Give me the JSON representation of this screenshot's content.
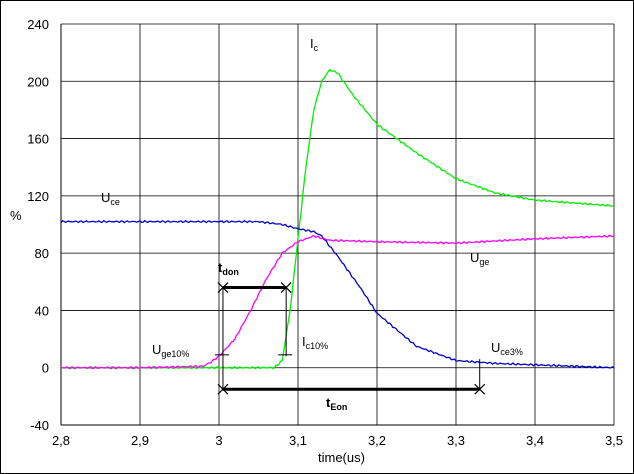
{
  "chart_data": {
    "type": "line",
    "xlabel": "time(us)",
    "ylabel": "%",
    "xlim": [
      2.8,
      3.5
    ],
    "ylim": [
      -40,
      240
    ],
    "x_ticks": [
      "2,8",
      "2,9",
      "3",
      "3,1",
      "3,2",
      "3,3",
      "3,4",
      "3,5"
    ],
    "y_ticks": [
      "-40",
      "0",
      "40",
      "80",
      "120",
      "160",
      "200",
      "240"
    ],
    "grid": true,
    "series": [
      {
        "name": "Ic",
        "color": "#00ee00",
        "x": [
          2.8,
          2.9,
          3.0,
          3.07,
          3.08,
          3.09,
          3.1,
          3.11,
          3.12,
          3.13,
          3.14,
          3.15,
          3.17,
          3.2,
          3.25,
          3.3,
          3.35,
          3.4,
          3.45,
          3.5
        ],
        "y": [
          0,
          0,
          0,
          0,
          5,
          40,
          90,
          140,
          180,
          200,
          208,
          206,
          190,
          170,
          150,
          132,
          122,
          117,
          115,
          113
        ]
      },
      {
        "name": "Uce",
        "color": "#0000cc",
        "x": [
          2.8,
          2.9,
          3.0,
          3.05,
          3.08,
          3.1,
          3.12,
          3.13,
          3.15,
          3.18,
          3.2,
          3.25,
          3.3,
          3.35,
          3.4,
          3.45,
          3.5
        ],
        "y": [
          102,
          102,
          102,
          102,
          100,
          97,
          95,
          92,
          78,
          55,
          38,
          15,
          5,
          3,
          2,
          1,
          0
        ]
      },
      {
        "name": "Uge",
        "color": "#ff00ff",
        "x": [
          2.8,
          2.9,
          2.98,
          2.99,
          3.0,
          3.02,
          3.04,
          3.06,
          3.08,
          3.1,
          3.12,
          3.14,
          3.2,
          3.3,
          3.4,
          3.5
        ],
        "y": [
          0,
          0,
          1,
          4,
          8,
          20,
          40,
          62,
          80,
          88,
          92,
          89,
          88,
          87,
          90,
          92
        ]
      }
    ],
    "annotations": [
      {
        "main": "I",
        "sub": "c"
      },
      {
        "main": "U",
        "sub": "ce"
      },
      {
        "main": "U",
        "sub": "ge"
      },
      {
        "main": "t",
        "sub": "don"
      },
      {
        "main": "U",
        "sub": "ge10%"
      },
      {
        "main": "I",
        "sub": "c10%"
      },
      {
        "main": "U",
        "sub": "ce3%"
      },
      {
        "main": "t",
        "sub": "Eon"
      }
    ]
  }
}
